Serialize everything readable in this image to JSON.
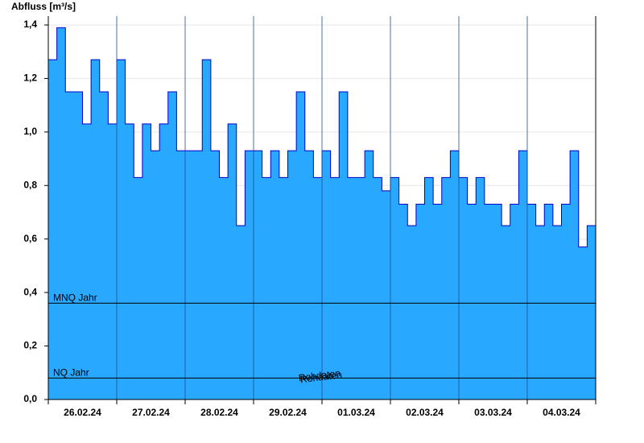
{
  "chart_data": {
    "type": "step-area",
    "y_axis_label": "Abfluss [m³/s]",
    "watermark": "Rohdaten",
    "xlim": [
      "2024-02-26T00:00",
      "2024-03-05T00:00"
    ],
    "xticks": [
      {
        "value": "2024-02-26T00:00",
        "label": "26.02.24"
      },
      {
        "value": "2024-02-27T00:00",
        "label": "27.02.24"
      },
      {
        "value": "2024-02-28T00:00",
        "label": "28.02.24"
      },
      {
        "value": "2024-02-29T00:00",
        "label": "29.02.24"
      },
      {
        "value": "2024-03-01T00:00",
        "label": "01.03.24"
      },
      {
        "value": "2024-03-02T00:00",
        "label": "02.03.24"
      },
      {
        "value": "2024-03-03T00:00",
        "label": "03.03.24"
      },
      {
        "value": "2024-03-04T00:00",
        "label": "04.03.24"
      }
    ],
    "ylim": [
      0,
      1.4
    ],
    "yticks": [
      {
        "value": 0,
        "label": "0,0"
      },
      {
        "value": 0.2,
        "label": "0,2"
      },
      {
        "value": 0.4,
        "label": "0,4"
      },
      {
        "value": 0.6,
        "label": "0,6"
      },
      {
        "value": 0.8,
        "label": "0,8"
      },
      {
        "value": 1.0,
        "label": "1,0"
      },
      {
        "value": 1.2,
        "label": "1,2"
      },
      {
        "value": 1.4,
        "label": "1,4"
      }
    ],
    "grid": true,
    "reference_lines": [
      {
        "name": "MNQ Jahr",
        "value": 0.36
      },
      {
        "name": "NQ Jahr",
        "value": 0.08
      }
    ],
    "series": [
      {
        "name": "Abfluss",
        "color": "#29a8ff",
        "line_color": "#0000cc",
        "x": [
          "2024-02-26T00:00",
          "2024-02-26T03:00",
          "2024-02-26T06:00",
          "2024-02-26T09:00",
          "2024-02-26T12:00",
          "2024-02-26T15:00",
          "2024-02-26T18:00",
          "2024-02-26T21:00",
          "2024-02-27T00:00",
          "2024-02-27T03:00",
          "2024-02-27T06:00",
          "2024-02-27T09:00",
          "2024-02-27T12:00",
          "2024-02-27T15:00",
          "2024-02-27T18:00",
          "2024-02-27T21:00",
          "2024-02-28T00:00",
          "2024-02-28T03:00",
          "2024-02-28T06:00",
          "2024-02-28T09:00",
          "2024-02-28T12:00",
          "2024-02-28T15:00",
          "2024-02-28T18:00",
          "2024-02-28T21:00",
          "2024-02-29T00:00",
          "2024-02-29T03:00",
          "2024-02-29T06:00",
          "2024-02-29T09:00",
          "2024-02-29T12:00",
          "2024-02-29T15:00",
          "2024-02-29T18:00",
          "2024-02-29T21:00",
          "2024-03-01T00:00",
          "2024-03-01T03:00",
          "2024-03-01T06:00",
          "2024-03-01T09:00",
          "2024-03-01T12:00",
          "2024-03-01T15:00",
          "2024-03-01T18:00",
          "2024-03-01T21:00",
          "2024-03-02T00:00",
          "2024-03-02T03:00",
          "2024-03-02T06:00",
          "2024-03-02T09:00",
          "2024-03-02T12:00",
          "2024-03-02T15:00",
          "2024-03-02T18:00",
          "2024-03-02T21:00",
          "2024-03-03T00:00",
          "2024-03-03T03:00",
          "2024-03-03T06:00",
          "2024-03-03T09:00",
          "2024-03-03T12:00",
          "2024-03-03T15:00",
          "2024-03-03T18:00",
          "2024-03-03T21:00",
          "2024-03-04T00:00",
          "2024-03-04T03:00",
          "2024-03-04T06:00",
          "2024-03-04T09:00",
          "2024-03-04T12:00",
          "2024-03-04T15:00",
          "2024-03-04T18:00",
          "2024-03-04T21:00"
        ],
        "values": [
          1.27,
          1.39,
          1.15,
          1.15,
          1.03,
          1.27,
          1.15,
          1.03,
          1.27,
          1.03,
          0.83,
          1.03,
          0.93,
          1.03,
          1.15,
          0.93,
          0.93,
          0.93,
          1.27,
          0.93,
          0.83,
          1.03,
          0.65,
          0.93,
          0.93,
          0.83,
          0.93,
          0.83,
          0.93,
          1.15,
          0.93,
          0.83,
          0.93,
          0.83,
          1.15,
          0.83,
          0.83,
          0.93,
          0.83,
          0.78,
          0.83,
          0.73,
          0.65,
          0.73,
          0.83,
          0.73,
          0.83,
          0.93,
          0.83,
          0.73,
          0.83,
          0.73,
          0.73,
          0.65,
          0.73,
          0.93,
          0.73,
          0.65,
          0.73,
          0.65,
          0.73,
          0.93,
          0.57,
          0.65
        ]
      }
    ]
  }
}
